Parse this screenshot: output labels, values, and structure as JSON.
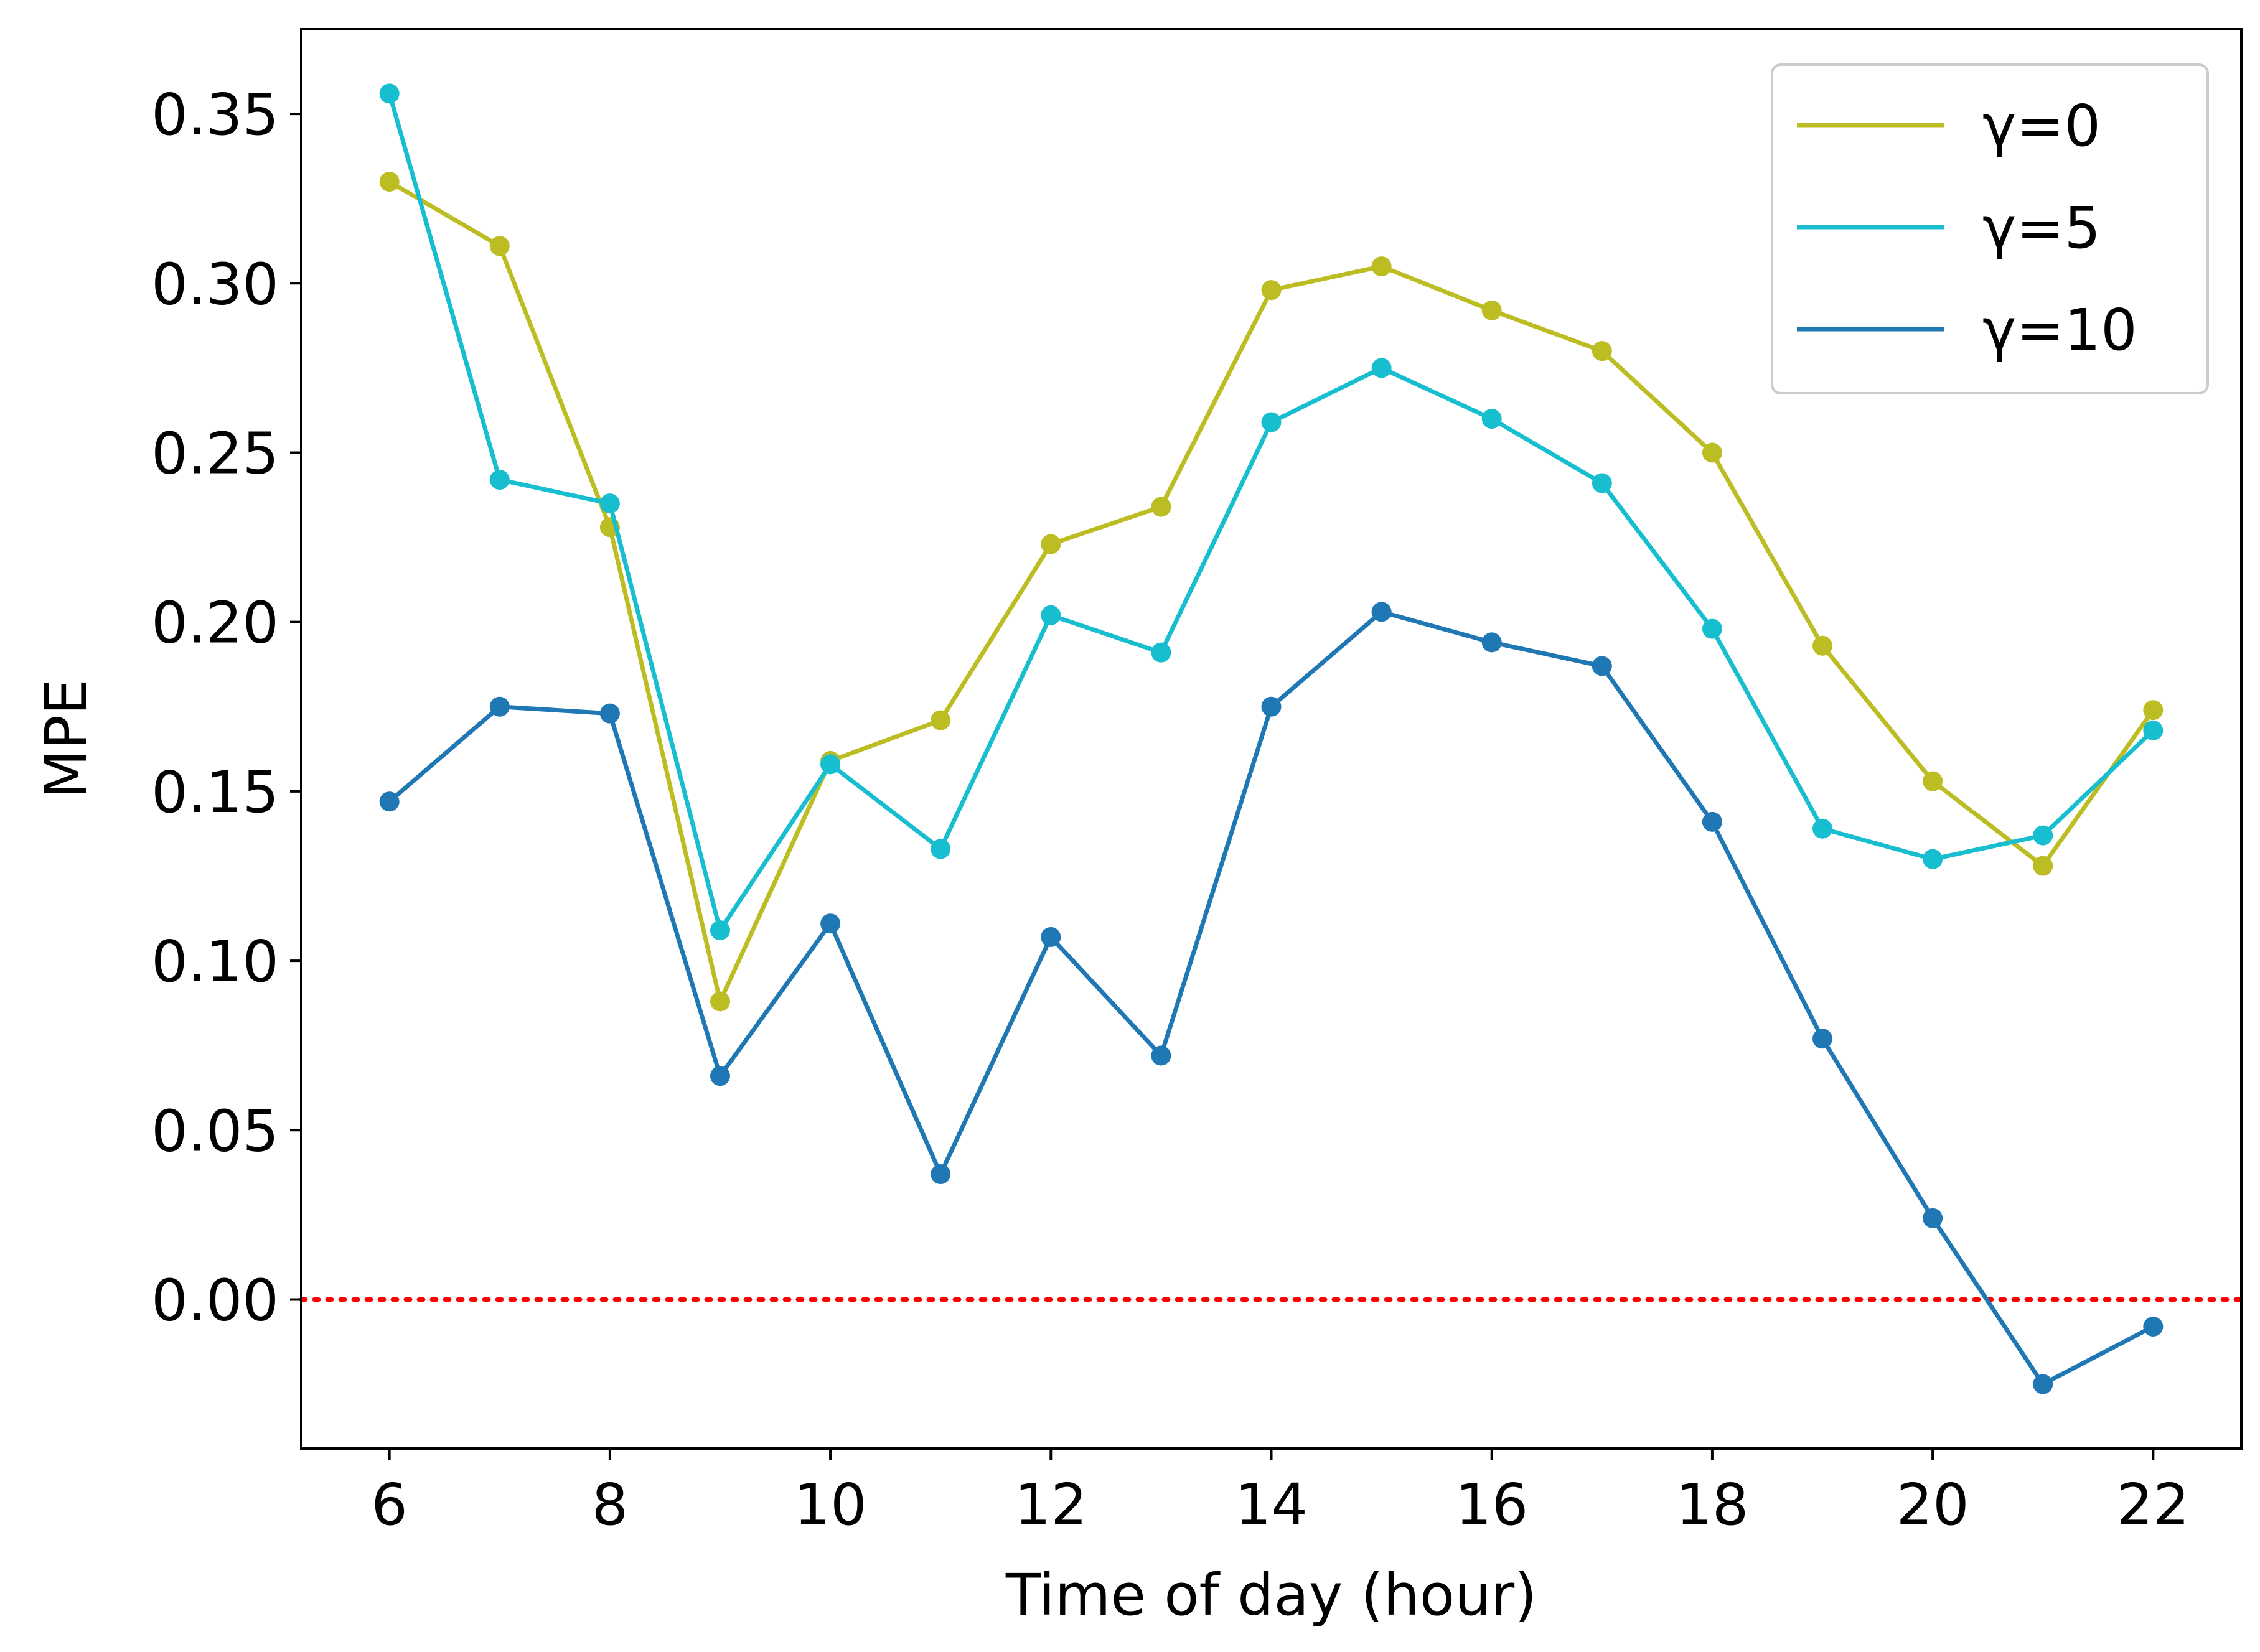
{
  "chart_data": {
    "type": "line",
    "title": "",
    "xlabel": "Time of day (hour)",
    "ylabel": "MPE",
    "x": [
      6,
      7,
      8,
      9,
      10,
      11,
      12,
      13,
      14,
      15,
      16,
      17,
      18,
      19,
      20,
      21,
      22
    ],
    "xlim": [
      5.2,
      22.8
    ],
    "ylim": [
      -0.044,
      0.375
    ],
    "xticks": [
      6,
      8,
      10,
      12,
      14,
      16,
      18,
      20,
      22
    ],
    "yticks": [
      0.0,
      0.05,
      0.1,
      0.15,
      0.2,
      0.25,
      0.3,
      0.35
    ],
    "xtick_labels": [
      "6",
      "8",
      "10",
      "12",
      "14",
      "16",
      "18",
      "20",
      "22"
    ],
    "ytick_labels": [
      "0.00",
      "0.05",
      "0.10",
      "0.15",
      "0.20",
      "0.25",
      "0.30",
      "0.35"
    ],
    "grid": false,
    "legend_position": "top-right",
    "reference_line": {
      "y": 0.0,
      "style": "dotted",
      "color": "#ff0000"
    },
    "series": [
      {
        "name": "γ=0",
        "color": "#bcbd22",
        "values": [
          0.33,
          0.311,
          0.228,
          0.088,
          0.159,
          0.171,
          0.223,
          0.234,
          0.298,
          0.305,
          0.292,
          0.28,
          0.25,
          0.193,
          0.153,
          0.128,
          0.174
        ]
      },
      {
        "name": "γ=5",
        "color": "#17becf",
        "values": [
          0.356,
          0.242,
          0.235,
          0.109,
          0.158,
          0.133,
          0.202,
          0.191,
          0.259,
          0.275,
          0.26,
          0.241,
          0.198,
          0.139,
          0.13,
          0.137,
          0.168
        ]
      },
      {
        "name": "γ=10",
        "color": "#1f77b4",
        "values": [
          0.147,
          0.175,
          0.173,
          0.066,
          0.111,
          0.037,
          0.107,
          0.072,
          0.175,
          0.203,
          0.194,
          0.187,
          0.141,
          0.077,
          0.024,
          -0.025,
          -0.008
        ]
      }
    ]
  }
}
